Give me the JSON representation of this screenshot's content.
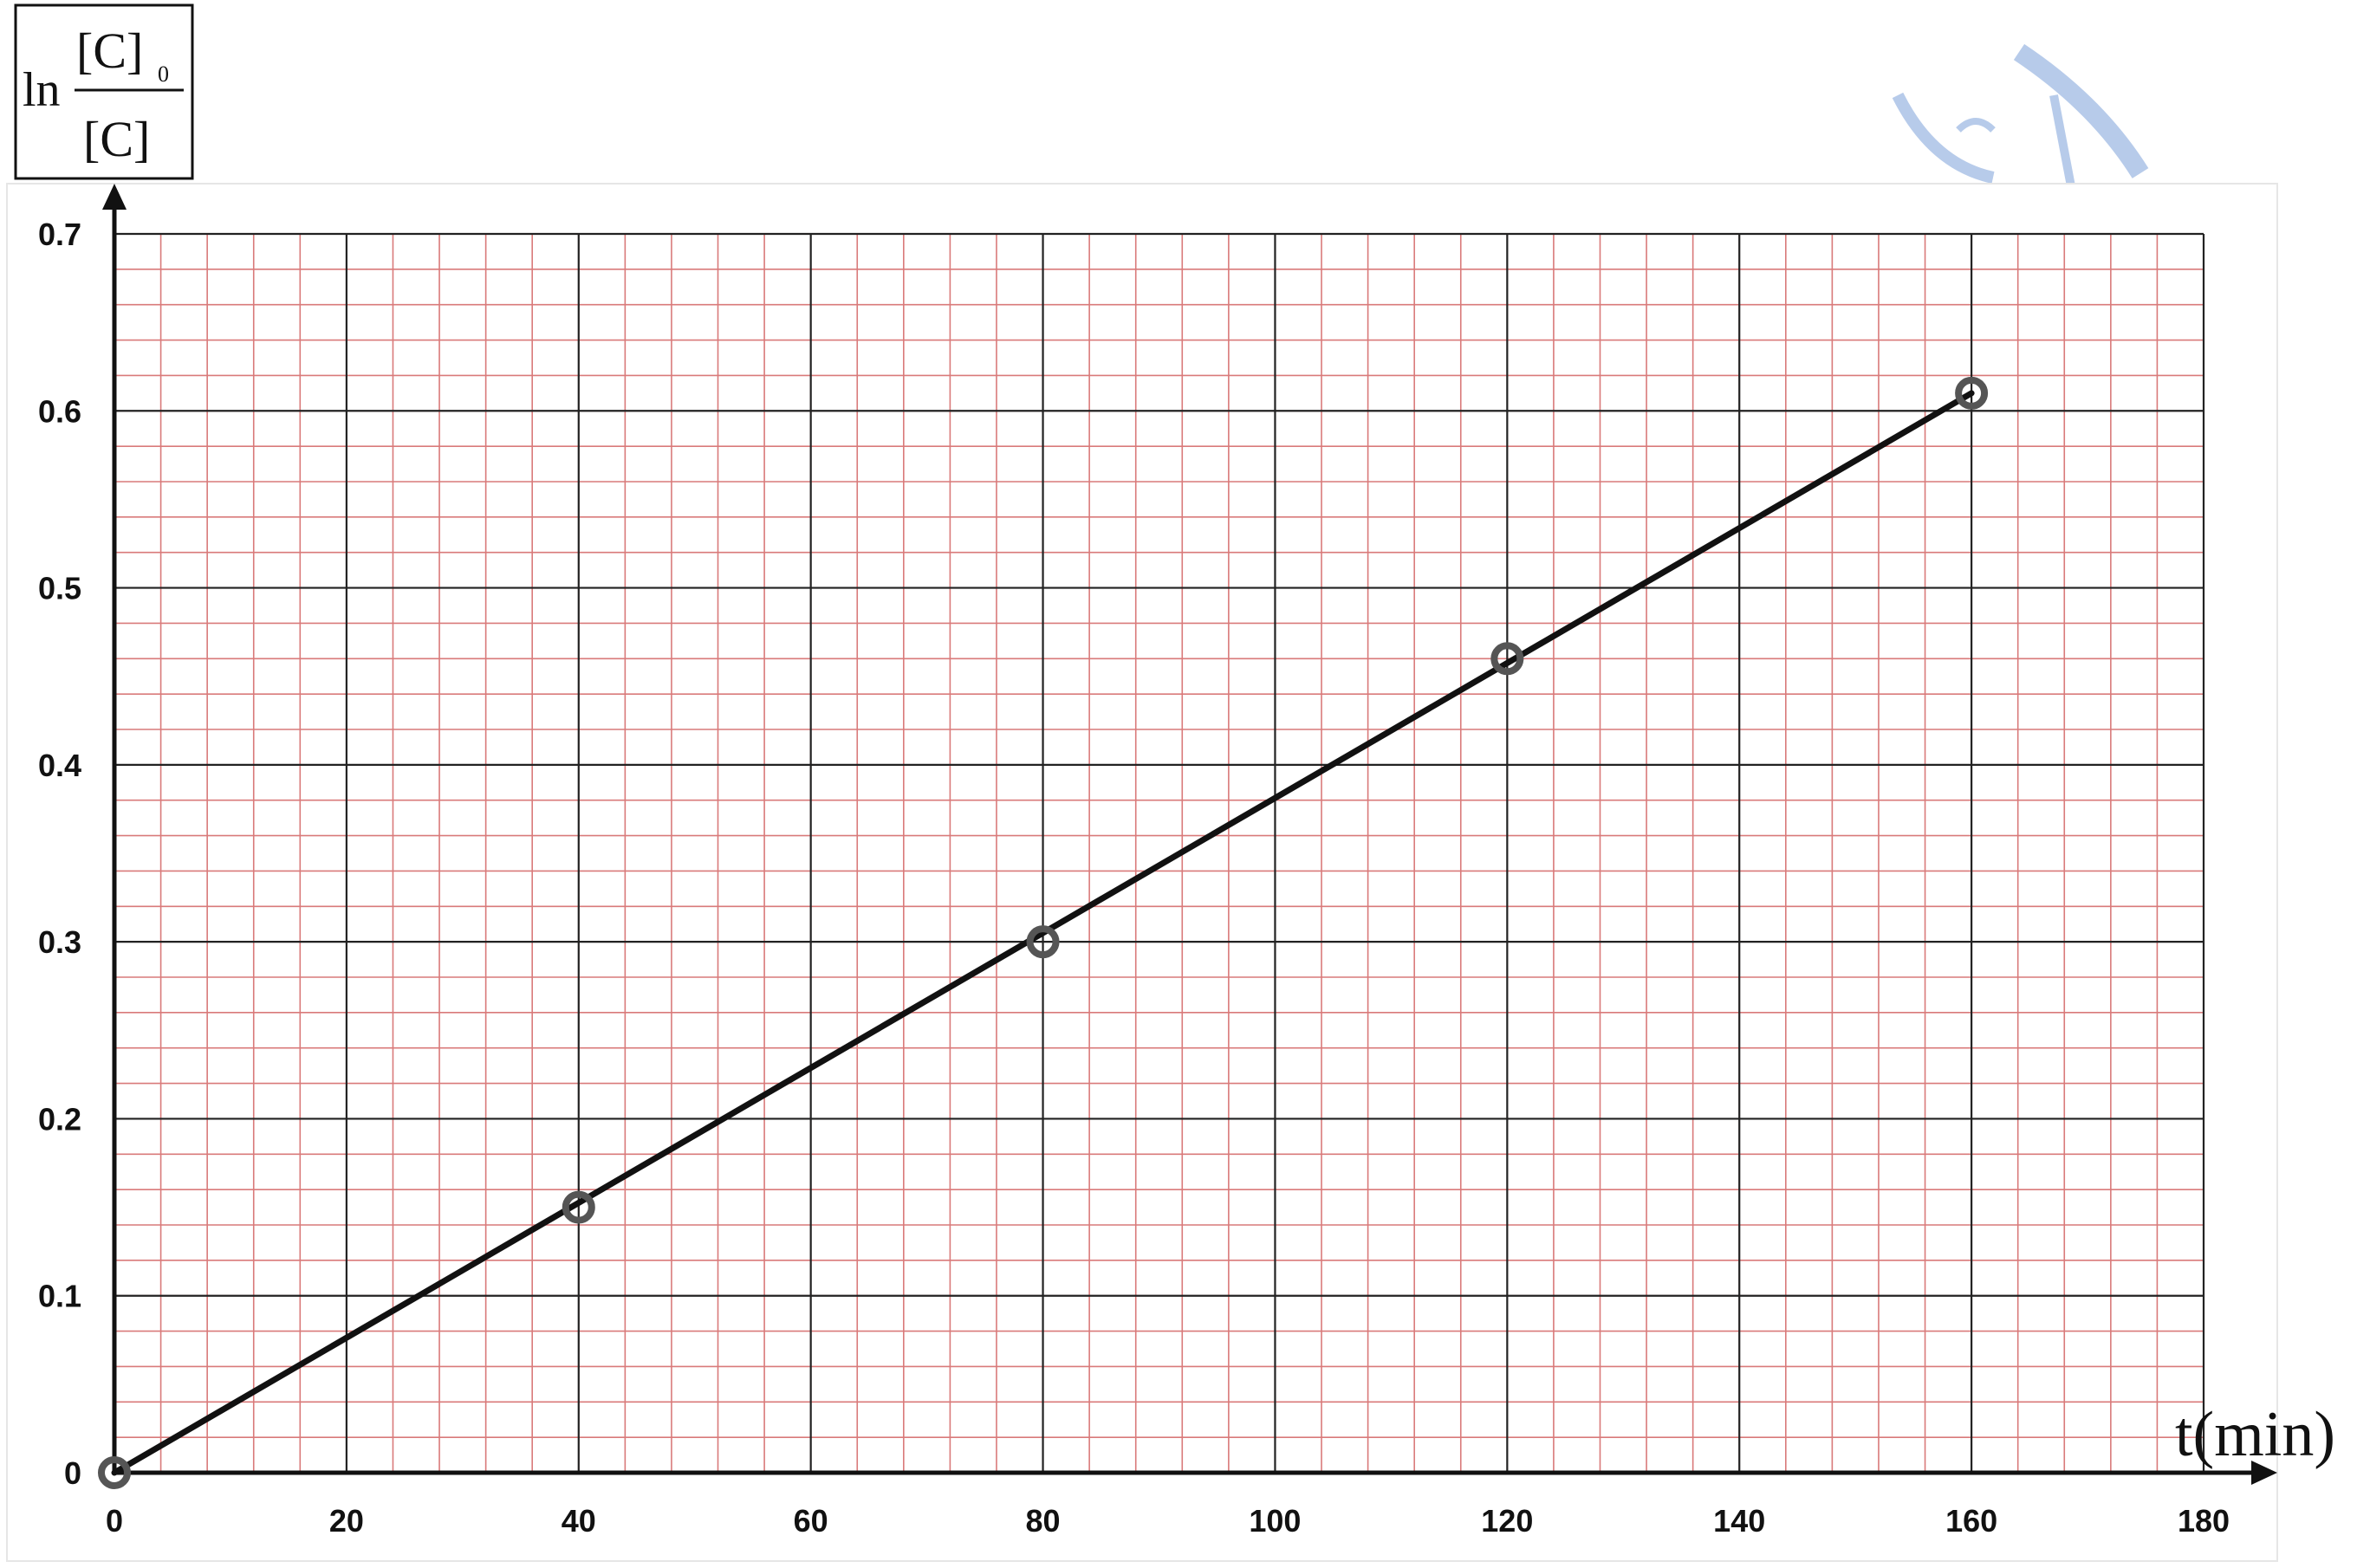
{
  "chart_data": {
    "type": "line",
    "x_axis": {
      "label": "t(min)",
      "lim": [
        0,
        180
      ],
      "ticks": [
        0,
        20,
        40,
        60,
        80,
        100,
        120,
        140,
        160,
        180
      ],
      "tick_labels": [
        "0",
        "20",
        "40",
        "60",
        "80",
        "100",
        "120",
        "140",
        "160",
        "180"
      ],
      "minor_step": 4
    },
    "y_axis": {
      "label_parts": {
        "prefix": "ln",
        "numerator": "[C]",
        "numerator_subscript": "0",
        "denominator": "[C]"
      },
      "lim": [
        0,
        0.7
      ],
      "ticks": [
        0,
        0.1,
        0.2,
        0.3,
        0.4,
        0.5,
        0.6,
        0.7
      ],
      "tick_labels": [
        "0",
        "0.1",
        "0.2",
        "0.3",
        "0.4",
        "0.5",
        "0.6",
        "0.7"
      ],
      "minor_step": 0.02
    },
    "grid": true,
    "colors": {
      "major_grid": "#222222",
      "minor_grid": "#d97a7a",
      "line": "#111111",
      "marker": "#555555",
      "watermark": "#9fb9e3"
    },
    "series": [
      {
        "x": [
          0,
          40,
          80,
          120,
          160
        ],
        "y": [
          0,
          0.15,
          0.3,
          0.46,
          0.61
        ]
      }
    ],
    "fit_line": {
      "x": [
        0,
        160
      ],
      "y": [
        0,
        0.61
      ]
    }
  }
}
